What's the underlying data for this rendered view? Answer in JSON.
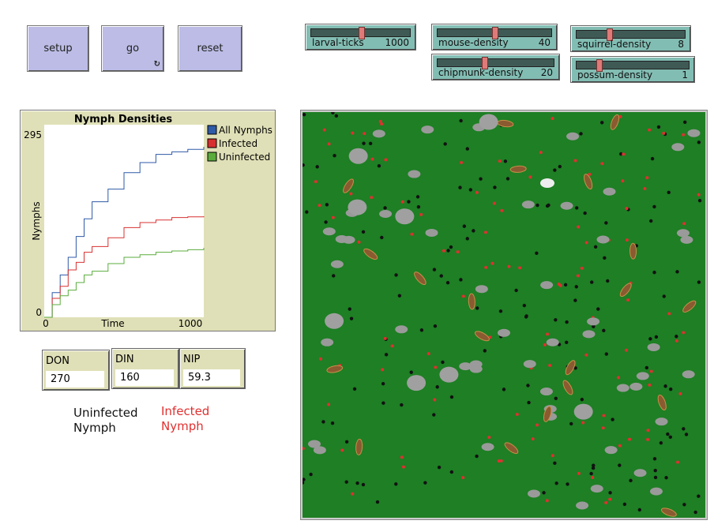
{
  "buttons": {
    "setup": "setup",
    "go": "go",
    "reset": "reset",
    "go_forever_icon": "forever-arrows"
  },
  "sliders": [
    {
      "label": "larval-ticks",
      "value": "1000",
      "fraction": 0.5
    },
    {
      "label": "mouse-density",
      "value": "40",
      "fraction": 0.5
    },
    {
      "label": "squirrel-density",
      "value": "8",
      "fraction": 0.3
    },
    {
      "label": "chipmunk-density",
      "value": "20",
      "fraction": 0.4
    },
    {
      "label": "possum-density",
      "value": "1",
      "fraction": 0.2
    }
  ],
  "monitors": [
    {
      "label": "DON",
      "value": "270"
    },
    {
      "label": "DIN",
      "value": "160"
    },
    {
      "label": "NIP",
      "value": "59.3"
    }
  ],
  "notes": {
    "uninfected": [
      "Uninfected",
      "Nymph"
    ],
    "infected": [
      "Infected",
      "Nymph"
    ],
    "infected_color": "#e03030"
  },
  "world": {
    "background": "#1e7f24"
  },
  "chart_data": {
    "type": "line",
    "title": "Nymph Densities",
    "xlabel": "Time",
    "ylabel": "Nymphs",
    "xlim": [
      0,
      1000
    ],
    "ylim": [
      0,
      295
    ],
    "x_ticks": [
      "0",
      "1000"
    ],
    "y_ticks": [
      "0",
      "295"
    ],
    "legend": "right",
    "x": [
      0,
      50,
      100,
      150,
      200,
      250,
      300,
      400,
      500,
      600,
      700,
      800,
      900,
      1000
    ],
    "series": [
      {
        "name": "All Nymphs",
        "color": "#2f5aa8",
        "values": [
          0,
          39,
          67,
          95,
          128,
          156,
          183,
          203,
          229,
          245,
          258,
          262,
          266,
          270
        ]
      },
      {
        "name": "Infected",
        "color": "#d83030",
        "values": [
          0,
          30,
          49,
          75,
          87,
          103,
          112,
          126,
          142,
          150,
          154,
          158,
          159,
          160
        ]
      },
      {
        "name": "Uninfected",
        "color": "#5aad3c",
        "values": [
          0,
          20,
          34,
          43,
          55,
          67,
          73,
          85,
          95,
          99,
          103,
          105,
          107,
          110
        ]
      }
    ]
  }
}
